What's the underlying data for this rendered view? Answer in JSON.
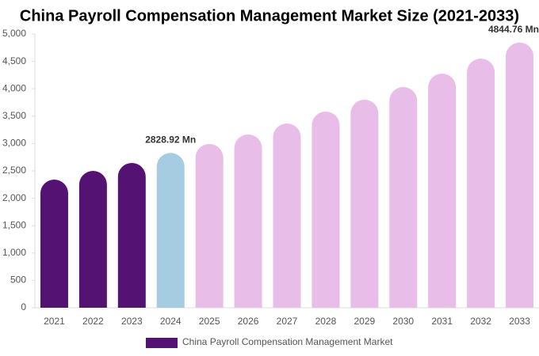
{
  "chart_data": {
    "type": "bar",
    "title": "China Payroll Compensation Management Market Size (2021-2033)",
    "categories": [
      "2021",
      "2022",
      "2023",
      "2024",
      "2025",
      "2026",
      "2027",
      "2028",
      "2029",
      "2030",
      "2031",
      "2032",
      "2033"
    ],
    "series": [
      {
        "name": "China Payroll Compensation Management Market",
        "color": "#541373",
        "values": [
          2341,
          2500,
          2645,
          2828.92,
          2991,
          3165,
          3367,
          3584,
          3801,
          4032,
          4277,
          4552,
          4844.76
        ],
        "value_labels": [
          null,
          null,
          null,
          "2828.92 Mn",
          null,
          null,
          null,
          null,
          null,
          null,
          null,
          null,
          "4844.76 Mn"
        ],
        "colors": [
          "#541373",
          "#541373",
          "#541373",
          "#a5cce0",
          "#e8bde8",
          "#e8bde8",
          "#e8bde8",
          "#e8bde8",
          "#e8bde8",
          "#e8bde8",
          "#e8bde8",
          "#e8bde8",
          "#e8bde8"
        ]
      }
    ],
    "ylim": [
      0,
      5000
    ],
    "yticks": [
      0,
      500,
      {
        "value": 1000,
        "label": "1,000"
      },
      {
        "value": 1500,
        "label": "1,500"
      },
      {
        "value": 2000,
        "label": "2,000"
      },
      {
        "value": 2500,
        "label": "2,500"
      },
      {
        "value": 3000,
        "label": "3,000"
      },
      {
        "value": 3500,
        "label": "3,500"
      },
      {
        "value": 4000,
        "label": "4,000"
      },
      {
        "value": 4500,
        "label": "4,500"
      },
      {
        "value": 5000,
        "label": "5,000"
      }
    ],
    "grid": false,
    "legend": "bottom"
  }
}
